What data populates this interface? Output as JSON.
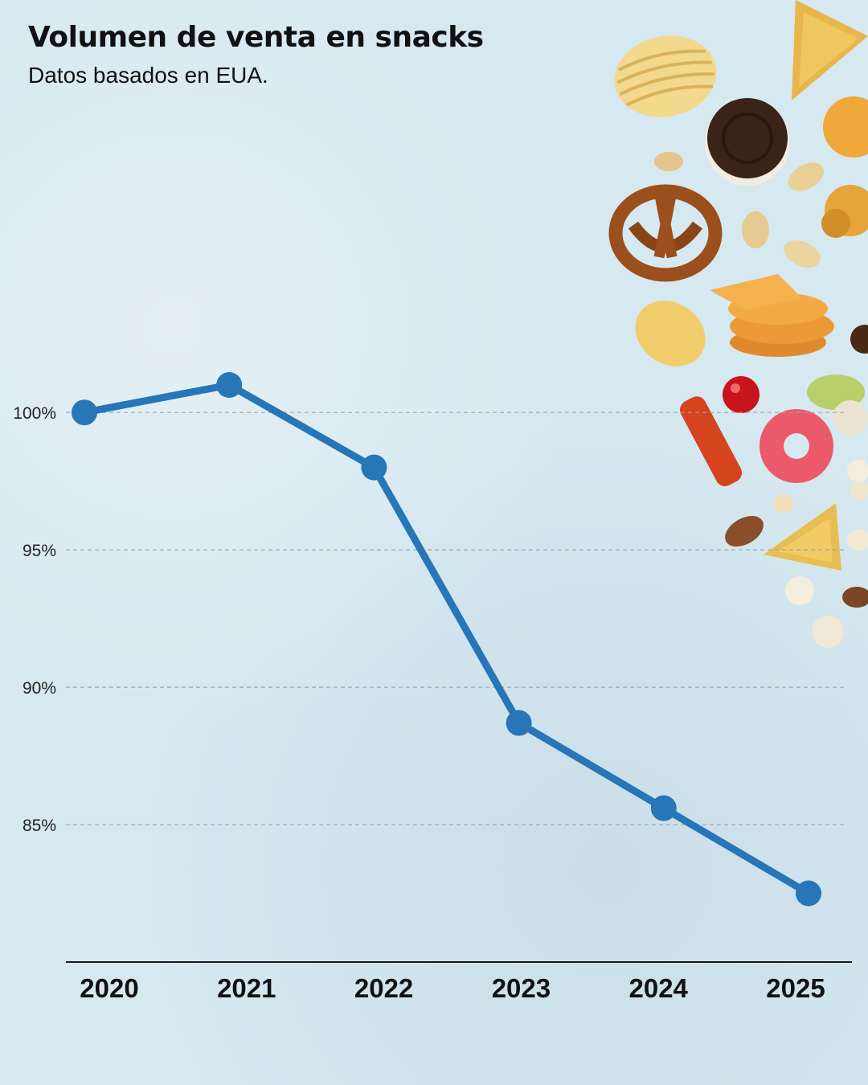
{
  "header": {
    "title": "Volumen de venta en snacks",
    "subtitle": "Datos basados en EUA."
  },
  "chart_data": {
    "type": "line",
    "title": "Volumen de venta en snacks",
    "subtitle": "Datos basados en EUA.",
    "xlabel": "",
    "ylabel": "",
    "categories": [
      "2020",
      "2021",
      "2022",
      "2023",
      "2024",
      "2025"
    ],
    "series": [
      {
        "values": [
          100,
          101,
          98,
          88.7,
          85.6,
          82.5
        ]
      }
    ],
    "yticks": [
      100,
      95,
      90,
      85
    ],
    "ytick_labels": [
      "100%",
      "95%",
      "90%",
      "85%"
    ],
    "ylim": [
      80,
      111.5
    ],
    "grid": "horizontal-dashed",
    "legend": "none",
    "colors": {
      "line": "#2676b8",
      "grid": "#9aa7ae",
      "axis": "#1a1a1a"
    }
  },
  "decoration": {
    "icon": "snacks-illustration-icon"
  }
}
